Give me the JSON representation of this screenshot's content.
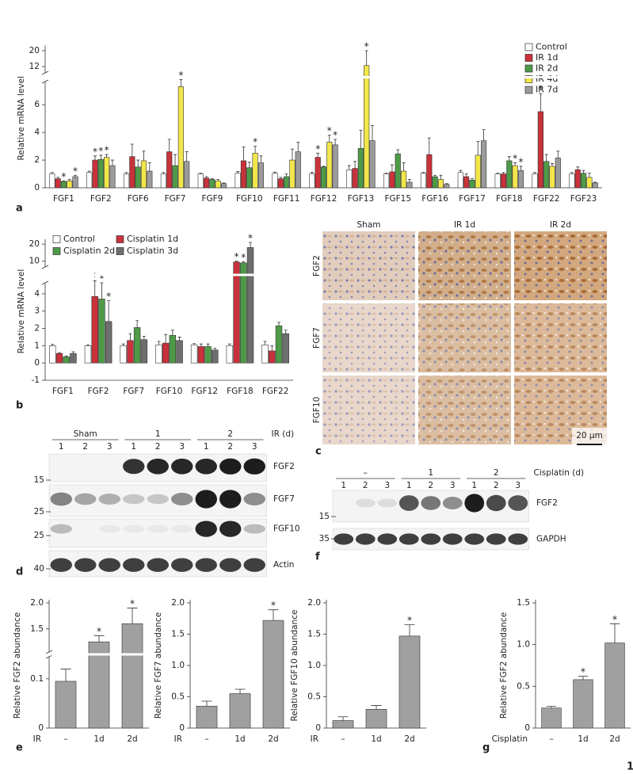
{
  "chart_data": [
    {
      "type": "bar",
      "ylabel": "Relative mRNA level",
      "categories": [
        "FGF1",
        "FGF2",
        "FGF6",
        "FGF7",
        "FGF9",
        "FGF10",
        "FGF11",
        "FGF12",
        "FGF13",
        "FGF15",
        "FGF16",
        "FGF17",
        "FGF18",
        "FGF22",
        "FGF23"
      ],
      "series": [
        {
          "name": "Control",
          "color": "#ffffff",
          "values": [
            1.0,
            1.1,
            1.0,
            1.0,
            1.0,
            1.05,
            1.05,
            1.0,
            1.3,
            1.0,
            1.05,
            1.1,
            1.0,
            1.0,
            1.0
          ],
          "errors": [
            0.1,
            0.1,
            0.1,
            0.1,
            0.05,
            0.12,
            0.08,
            0.12,
            0.3,
            0.05,
            0.05,
            0.15,
            0.05,
            0.1,
            0.1
          ],
          "stars": [
            null,
            null,
            null,
            null,
            null,
            null,
            null,
            null,
            null,
            null,
            null,
            null,
            null,
            null,
            null
          ]
        },
        {
          "name": "IR 1d",
          "color": "#c8323a",
          "values": [
            0.65,
            2.0,
            2.25,
            2.6,
            0.7,
            1.95,
            0.65,
            2.2,
            1.4,
            1.15,
            2.4,
            0.8,
            1.0,
            5.5,
            1.3
          ],
          "errors": [
            0.1,
            0.3,
            0.9,
            0.9,
            0.1,
            1.0,
            0.1,
            0.3,
            0.5,
            0.5,
            1.2,
            0.2,
            0.1,
            1.3,
            0.2
          ],
          "stars": [
            null,
            "*",
            null,
            null,
            null,
            null,
            null,
            "*",
            null,
            null,
            null,
            null,
            null,
            "*",
            null
          ]
        },
        {
          "name": "IR 2d",
          "color": "#4f9a48",
          "values": [
            0.45,
            2.05,
            1.5,
            1.6,
            0.6,
            1.45,
            0.8,
            1.5,
            2.85,
            2.45,
            0.8,
            0.55,
            1.95,
            1.9,
            1.05
          ],
          "errors": [
            0.05,
            0.3,
            0.5,
            0.8,
            0.05,
            0.4,
            0.2,
            0.05,
            1.3,
            0.3,
            0.1,
            0.1,
            0.3,
            0.5,
            0.2
          ],
          "stars": [
            "*",
            "*",
            null,
            null,
            null,
            null,
            null,
            null,
            null,
            null,
            null,
            null,
            null,
            null,
            null
          ]
        },
        {
          "name": "IR 4d",
          "color": "#f2e64b",
          "values": [
            0.5,
            2.2,
            1.95,
            7.3,
            0.5,
            2.5,
            2.0,
            3.3,
            12.5,
            1.2,
            0.6,
            2.35,
            1.6,
            1.55,
            0.75
          ],
          "errors": [
            0.1,
            0.2,
            0.7,
            1.0,
            0.1,
            0.5,
            0.8,
            0.5,
            7.5,
            0.6,
            0.3,
            1.0,
            0.2,
            0.2,
            0.3
          ],
          "stars": [
            null,
            "*",
            null,
            "*",
            null,
            "*",
            null,
            "*",
            "*",
            null,
            null,
            null,
            "*",
            null,
            null
          ]
        },
        {
          "name": "IR 7d",
          "color": "#9b9b9b",
          "values": [
            0.8,
            1.6,
            1.2,
            1.9,
            0.3,
            1.8,
            2.6,
            3.1,
            3.4,
            0.4,
            0.25,
            3.4,
            1.25,
            2.15,
            0.35
          ],
          "errors": [
            0.1,
            0.4,
            0.6,
            0.7,
            0.05,
            0.5,
            0.7,
            0.4,
            1.1,
            0.2,
            0.05,
            0.8,
            0.3,
            0.5,
            0.05
          ],
          "stars": [
            "*",
            null,
            null,
            null,
            null,
            null,
            null,
            "*",
            null,
            null,
            null,
            null,
            "*",
            null,
            null
          ]
        }
      ],
      "ylim": [
        0,
        21
      ],
      "ybreak": [
        7.5,
        10
      ],
      "yticks": [
        0,
        2,
        4,
        6,
        12,
        20
      ],
      "grid": false,
      "legend": "upper right"
    },
    {
      "type": "bar",
      "ylabel": "Relative mRNA level",
      "categories": [
        "FGF1",
        "FGF2",
        "FGF7",
        "FGF10",
        "FGF12",
        "FGF18",
        "FGF22"
      ],
      "series": [
        {
          "name": "Control",
          "color": "#ffffff",
          "values": [
            1.0,
            1.0,
            1.0,
            1.05,
            1.05,
            1.0,
            1.05
          ],
          "errors": [
            0.07,
            0.05,
            0.1,
            0.2,
            0.07,
            0.1,
            0.2
          ],
          "stars": [
            null,
            null,
            null,
            null,
            null,
            null,
            null
          ]
        },
        {
          "name": "Cisplatin 1d",
          "color": "#c8323a",
          "values": [
            0.55,
            3.85,
            1.3,
            1.15,
            0.95,
            9.5,
            0.7
          ],
          "errors": [
            0.05,
            1.4,
            0.4,
            0.5,
            0.15,
            0.5,
            0.3
          ],
          "stars": [
            null,
            "*",
            null,
            null,
            null,
            "*",
            null
          ]
        },
        {
          "name": "Cisplatin 2d",
          "color": "#4f9a48",
          "values": [
            0.35,
            3.7,
            2.05,
            1.6,
            0.95,
            9.0,
            2.15
          ],
          "errors": [
            0.05,
            1.2,
            0.4,
            0.3,
            0.15,
            0.6,
            0.2
          ],
          "stars": [
            null,
            "*",
            null,
            null,
            null,
            "*",
            null
          ]
        },
        {
          "name": "Cisplatin 3d",
          "color": "#6e6e6e",
          "values": [
            0.55,
            2.4,
            1.35,
            1.3,
            0.75,
            18,
            1.7
          ],
          "errors": [
            0.1,
            1.2,
            0.2,
            0.2,
            0.1,
            3,
            0.2
          ],
          "stars": [
            null,
            "*",
            null,
            null,
            null,
            "*",
            null
          ]
        }
      ],
      "ylim": [
        -1,
        21
      ],
      "ybreak": [
        4.5,
        8
      ],
      "yticks": [
        -1,
        0,
        1,
        2,
        3,
        4,
        10,
        20
      ],
      "grid": false,
      "legend": "upper left"
    },
    {
      "type": "bar",
      "ylabel": "Relative FGF2 abundance",
      "xlabel": "IR",
      "categories": [
        "–",
        "1d",
        "2d"
      ],
      "values": [
        0.095,
        1.25,
        1.6
      ],
      "errors": [
        0.025,
        0.12,
        0.3
      ],
      "stars": [
        null,
        "*",
        "*"
      ],
      "color": "#a0a0a0",
      "ylim": [
        0,
        2
      ],
      "ybreak": [
        0.14,
        1.1
      ],
      "yticks": [
        0,
        0.1,
        1.5,
        {
          "value": 2,
          "label": "2.0"
        }
      ],
      "grid": false
    },
    {
      "type": "bar",
      "ylabel": "Relative FGF7 abundance",
      "xlabel": "IR",
      "categories": [
        "–",
        "1d",
        "2d"
      ],
      "values": [
        0.35,
        0.55,
        1.72
      ],
      "errors": [
        0.08,
        0.07,
        0.17
      ],
      "stars": [
        null,
        null,
        "*"
      ],
      "color": "#a0a0a0",
      "ylim": [
        0,
        2
      ],
      "yticks": [
        0,
        0.5,
        {
          "value": 1,
          "label": "1.0"
        },
        1.5,
        {
          "value": 2,
          "label": "2.0"
        }
      ],
      "grid": false
    },
    {
      "type": "bar",
      "ylabel": "Relative FGF10 abundance",
      "xlabel": "IR",
      "categories": [
        "–",
        "1d",
        "2d"
      ],
      "values": [
        0.12,
        0.3,
        1.47
      ],
      "errors": [
        0.06,
        0.06,
        0.18
      ],
      "stars": [
        null,
        null,
        "*"
      ],
      "color": "#a0a0a0",
      "ylim": [
        0,
        2
      ],
      "yticks": [
        0,
        0.5,
        {
          "value": 1,
          "label": "1.0"
        },
        1.5,
        {
          "value": 2,
          "label": "2.0"
        }
      ],
      "grid": false
    },
    {
      "type": "bar",
      "ylabel": "Relative FGF2 abundance",
      "xlabel": "Cisplatin",
      "categories": [
        "–",
        "1d",
        "2d"
      ],
      "values": [
        0.24,
        0.58,
        1.02
      ],
      "errors": [
        0.02,
        0.04,
        0.23
      ],
      "stars": [
        null,
        "*",
        "*"
      ],
      "color": "#a0a0a0",
      "ylim": [
        0,
        1.5
      ],
      "yticks": [
        0,
        0.5,
        {
          "value": 1,
          "label": "1.0"
        },
        1.5
      ],
      "grid": false
    }
  ],
  "panel_labels": {
    "a": "a",
    "b": "b",
    "c": "c",
    "d": "d",
    "e": "e",
    "f": "f",
    "g": "g"
  },
  "histology": {
    "columns": [
      "Sham",
      "IR 1d",
      "IR 2d"
    ],
    "rows": [
      "FGF2",
      "FGF7",
      "FGF10"
    ],
    "scale_bar": "20 μm"
  },
  "blot_d": {
    "groups": [
      "Sham",
      "1",
      "2"
    ],
    "unit": "IR (d)",
    "lanes": [
      "1",
      "2",
      "3"
    ],
    "markers": [
      "15",
      "25",
      "25",
      "40"
    ],
    "bands": [
      "FGF2",
      "FGF7",
      "FGF10",
      "Actin"
    ]
  },
  "blot_f": {
    "groups": [
      "–",
      "1",
      "2"
    ],
    "unit": "Cisplatin (d)",
    "lanes": [
      "1",
      "2",
      "3"
    ],
    "markers": [
      "15",
      "35"
    ],
    "bands": [
      "FGF2",
      "GAPDH"
    ]
  },
  "page_number": "1"
}
